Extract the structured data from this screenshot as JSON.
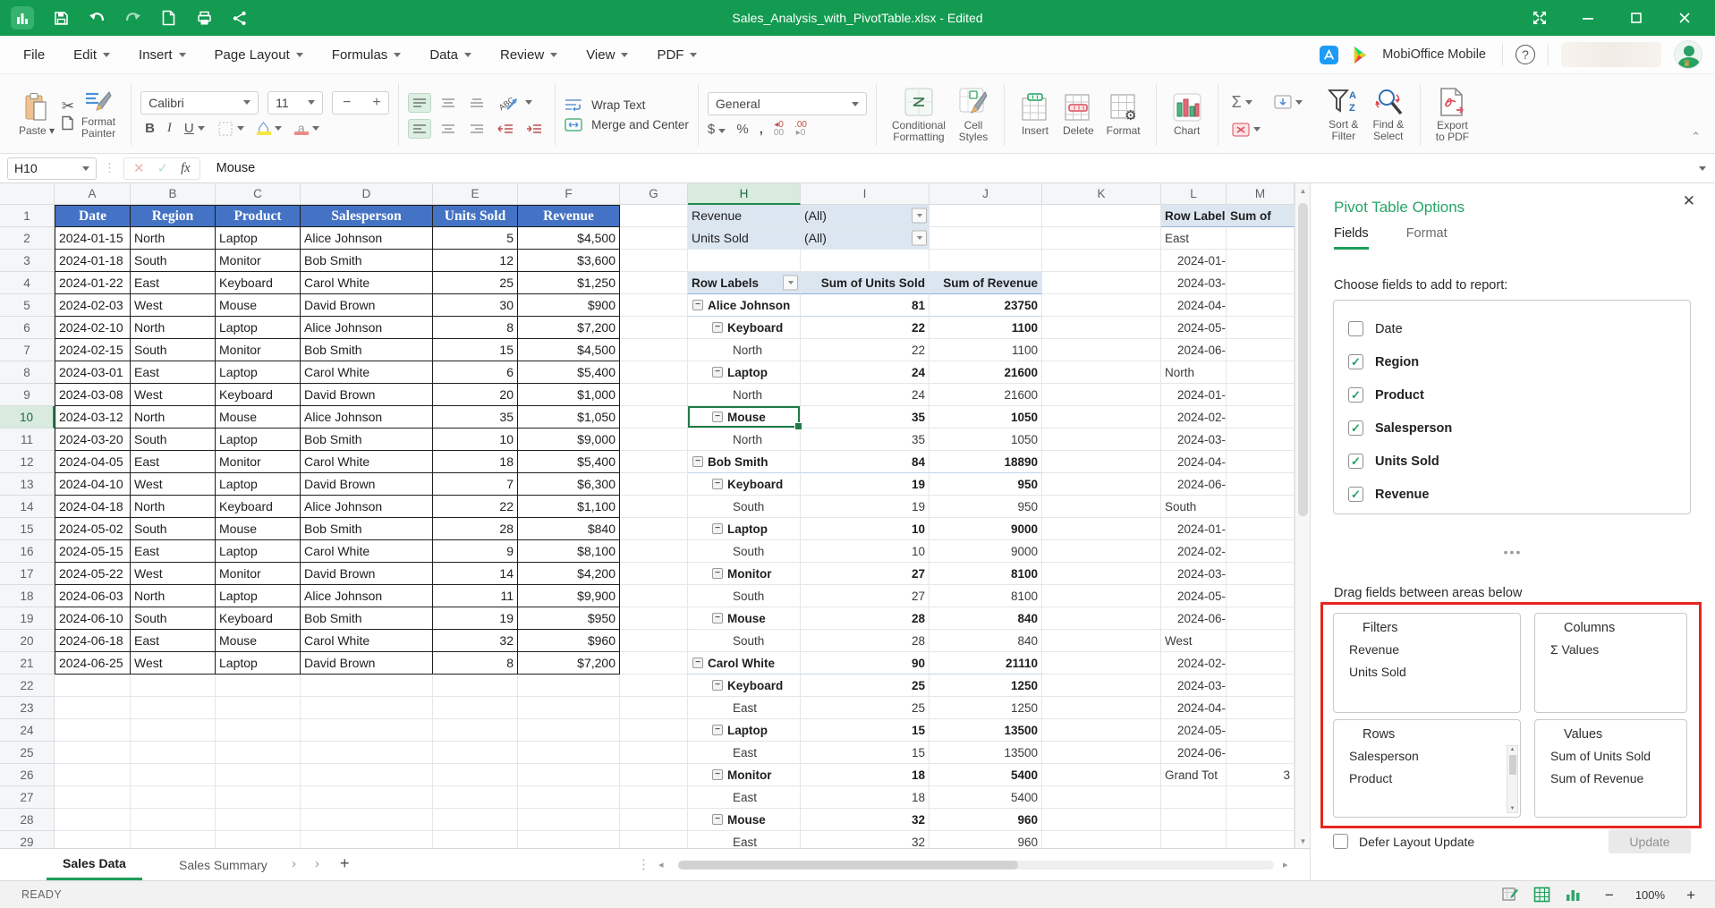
{
  "window": {
    "title": "Sales_Analysis_with_PivotTable.xlsx - Edited"
  },
  "menu": {
    "items": [
      "File",
      "Edit",
      "Insert",
      "Page Layout",
      "Formulas",
      "Data",
      "Review",
      "View",
      "PDF"
    ],
    "brand": "MobiOffice Mobile"
  },
  "toolbar": {
    "paste": "Paste",
    "format_painter": "Format\nPainter",
    "font_name": "Calibri",
    "font_size": "11",
    "bold": "B",
    "italic": "I",
    "underline": "U",
    "orientation": "ABC",
    "wrap_text": "Wrap Text",
    "merge_center": "Merge and Center",
    "number_format": "General",
    "currency": "$",
    "percent": "%",
    "comma": ",",
    "conditional": "Conditional\nFormatting",
    "cell_styles": "Cell\nStyles",
    "insert": "Insert",
    "delete": "Delete",
    "format": "Format",
    "chart": "Chart",
    "sum": "Σ",
    "sort_filter": "Sort &\nFilter",
    "find_select": "Find &\nSelect",
    "export_pdf": "Export\nto PDF"
  },
  "formula_bar": {
    "cell_ref": "H10",
    "fx": "fx",
    "value": "Mouse"
  },
  "sheet": {
    "columns": [
      "A",
      "B",
      "C",
      "D",
      "E",
      "F",
      "G",
      "H",
      "I",
      "J",
      "K",
      "L",
      "M"
    ],
    "selected": {
      "column": "H",
      "row": 10
    },
    "table": {
      "headers": [
        "Date",
        "Region",
        "Product",
        "Salesperson",
        "Units Sold",
        "Revenue"
      ],
      "rows": [
        [
          "2024-01-15",
          "North",
          "Laptop",
          "Alice Johnson",
          "5",
          "$4,500"
        ],
        [
          "2024-01-18",
          "South",
          "Monitor",
          "Bob Smith",
          "12",
          "$3,600"
        ],
        [
          "2024-01-22",
          "East",
          "Keyboard",
          "Carol White",
          "25",
          "$1,250"
        ],
        [
          "2024-02-03",
          "West",
          "Mouse",
          "David Brown",
          "30",
          "$900"
        ],
        [
          "2024-02-10",
          "North",
          "Laptop",
          "Alice Johnson",
          "8",
          "$7,200"
        ],
        [
          "2024-02-15",
          "South",
          "Monitor",
          "Bob Smith",
          "15",
          "$4,500"
        ],
        [
          "2024-03-01",
          "East",
          "Laptop",
          "Carol White",
          "6",
          "$5,400"
        ],
        [
          "2024-03-08",
          "West",
          "Keyboard",
          "David Brown",
          "20",
          "$1,000"
        ],
        [
          "2024-03-12",
          "North",
          "Mouse",
          "Alice Johnson",
          "35",
          "$1,050"
        ],
        [
          "2024-03-20",
          "South",
          "Laptop",
          "Bob Smith",
          "10",
          "$9,000"
        ],
        [
          "2024-04-05",
          "East",
          "Monitor",
          "Carol White",
          "18",
          "$5,400"
        ],
        [
          "2024-04-10",
          "West",
          "Laptop",
          "David Brown",
          "7",
          "$6,300"
        ],
        [
          "2024-04-18",
          "North",
          "Keyboard",
          "Alice Johnson",
          "22",
          "$1,100"
        ],
        [
          "2024-05-02",
          "South",
          "Mouse",
          "Bob Smith",
          "28",
          "$840"
        ],
        [
          "2024-05-15",
          "East",
          "Laptop",
          "Carol White",
          "9",
          "$8,100"
        ],
        [
          "2024-05-22",
          "West",
          "Monitor",
          "David Brown",
          "14",
          "$4,200"
        ],
        [
          "2024-06-03",
          "North",
          "Laptop",
          "Alice Johnson",
          "11",
          "$9,900"
        ],
        [
          "2024-06-10",
          "South",
          "Keyboard",
          "Bob Smith",
          "19",
          "$950"
        ],
        [
          "2024-06-18",
          "East",
          "Mouse",
          "Carol White",
          "32",
          "$960"
        ],
        [
          "2024-06-25",
          "West",
          "Laptop",
          "David Brown",
          "8",
          "$7,200"
        ]
      ]
    },
    "pivot_filters": [
      {
        "field": "Revenue",
        "value": "(All)"
      },
      {
        "field": "Units Sold",
        "value": "(All)"
      }
    ],
    "pivot": {
      "headers": [
        "Row Labels",
        "Sum of Units Sold",
        "Sum of Revenue"
      ],
      "rows": [
        {
          "label": "Alice Johnson",
          "level": 1,
          "units": "81",
          "revenue": "23750"
        },
        {
          "label": "Keyboard",
          "level": 2,
          "units": "22",
          "revenue": "1100"
        },
        {
          "label": "North",
          "level": 3,
          "units": "22",
          "revenue": "1100"
        },
        {
          "label": "Laptop",
          "level": 2,
          "units": "24",
          "revenue": "21600"
        },
        {
          "label": "North",
          "level": 3,
          "units": "24",
          "revenue": "21600"
        },
        {
          "label": "Mouse",
          "level": 2,
          "units": "35",
          "revenue": "1050"
        },
        {
          "label": "North",
          "level": 3,
          "units": "35",
          "revenue": "1050"
        },
        {
          "label": "Bob Smith",
          "level": 1,
          "units": "84",
          "revenue": "18890"
        },
        {
          "label": "Keyboard",
          "level": 2,
          "units": "19",
          "revenue": "950"
        },
        {
          "label": "South",
          "level": 3,
          "units": "19",
          "revenue": "950"
        },
        {
          "label": "Laptop",
          "level": 2,
          "units": "10",
          "revenue": "9000"
        },
        {
          "label": "South",
          "level": 3,
          "units": "10",
          "revenue": "9000"
        },
        {
          "label": "Monitor",
          "level": 2,
          "units": "27",
          "revenue": "8100"
        },
        {
          "label": "South",
          "level": 3,
          "units": "27",
          "revenue": "8100"
        },
        {
          "label": "Mouse",
          "level": 2,
          "units": "28",
          "revenue": "840"
        },
        {
          "label": "South",
          "level": 3,
          "units": "28",
          "revenue": "840"
        },
        {
          "label": "Carol White",
          "level": 1,
          "units": "90",
          "revenue": "21110"
        },
        {
          "label": "Keyboard",
          "level": 2,
          "units": "25",
          "revenue": "1250"
        },
        {
          "label": "East",
          "level": 3,
          "units": "25",
          "revenue": "1250"
        },
        {
          "label": "Laptop",
          "level": 2,
          "units": "15",
          "revenue": "13500"
        },
        {
          "label": "East",
          "level": 3,
          "units": "15",
          "revenue": "13500"
        },
        {
          "label": "Monitor",
          "level": 2,
          "units": "18",
          "revenue": "5400"
        },
        {
          "label": "East",
          "level": 3,
          "units": "18",
          "revenue": "5400"
        },
        {
          "label": "Mouse",
          "level": 2,
          "units": "32",
          "revenue": "960"
        },
        {
          "label": "East",
          "level": 3,
          "units": "32",
          "revenue": "960"
        }
      ]
    },
    "region_pivot": {
      "headers": [
        "Row Label",
        "Sum of"
      ],
      "rows": [
        "East",
        "2024-01-",
        "2024-03-",
        "2024-04-",
        "2024-05-",
        "2024-06-",
        "North",
        "2024-01-",
        "2024-02-",
        "2024-03-",
        "2024-04-",
        "2024-06-",
        "South",
        "2024-01-",
        "2024-02-",
        "2024-03-",
        "2024-05-",
        "2024-06-",
        "West",
        "2024-02-",
        "2024-03-",
        "2024-04-",
        "2024-05-",
        "2024-06-"
      ],
      "grand_label": "Grand Tot",
      "grand_value": "3"
    }
  },
  "tabs": {
    "items": [
      {
        "label": "Sales Data",
        "active": true
      },
      {
        "label": "Sales Summary",
        "active": false
      }
    ]
  },
  "status": {
    "mode": "READY",
    "zoom": "100%"
  },
  "panel": {
    "title": "Pivot Table Options",
    "tabs": [
      {
        "label": "Fields",
        "active": true
      },
      {
        "label": "Format",
        "active": false
      }
    ],
    "choose_label": "Choose fields to add to report:",
    "fields": [
      {
        "label": "Date",
        "checked": false
      },
      {
        "label": "Region",
        "checked": true
      },
      {
        "label": "Product",
        "checked": true
      },
      {
        "label": "Salesperson",
        "checked": true
      },
      {
        "label": "Units Sold",
        "checked": true
      },
      {
        "label": "Revenue",
        "checked": true
      }
    ],
    "drag_label": "Drag fields between areas below",
    "areas": {
      "filters": {
        "title": "Filters",
        "items": [
          "Revenue",
          "Units Sold"
        ]
      },
      "columns": {
        "title": "Columns",
        "items": [
          "Σ Values"
        ]
      },
      "rows": {
        "title": "Rows",
        "items": [
          "Salesperson",
          "Product"
        ]
      },
      "values": {
        "title": "Values",
        "items": [
          "Sum of Units Sold",
          "Sum of Revenue"
        ]
      }
    },
    "defer_label": "Defer Layout Update",
    "update_label": "Update"
  }
}
